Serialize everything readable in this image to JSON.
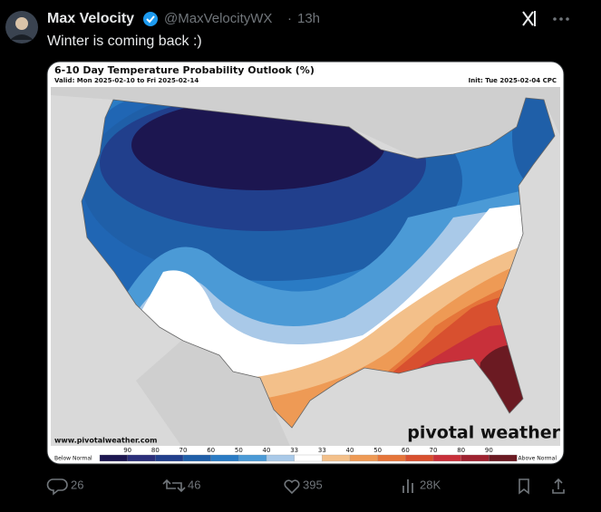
{
  "tweet": {
    "author": {
      "name": "Max Velocity",
      "handle": "@MaxVelocityWX",
      "separator": "·",
      "time": "13h"
    },
    "text": "Winter is coming back :)",
    "media": {
      "title": "6-10 Day Temperature Probability Outlook (%)",
      "valid": "Valid: Mon 2025-02-10 to Fri 2025-02-14",
      "init": "Init: Tue 2025-02-04 CPC",
      "source": "www.pivotalweather.com",
      "brand": "pivotal weather",
      "legend": {
        "below": "Below Normal",
        "above": "Above Normal",
        "labels": [
          90,
          80,
          70,
          60,
          50,
          40,
          33,
          33,
          40,
          50,
          60,
          70,
          80,
          90
        ],
        "colors": [
          "#1c1650",
          "#2b2f7a",
          "#213f8c",
          "#1f5fa8",
          "#2a7bc4",
          "#4b9ad6",
          "#a9c9e8",
          "#ffffff",
          "#f3c08a",
          "#ee9a55",
          "#e5753a",
          "#d8502f",
          "#c8303a",
          "#9e2230",
          "#6b1a22"
        ]
      }
    },
    "stats": {
      "replies": 26,
      "reposts": 46,
      "likes": 395,
      "views": "28K"
    }
  }
}
